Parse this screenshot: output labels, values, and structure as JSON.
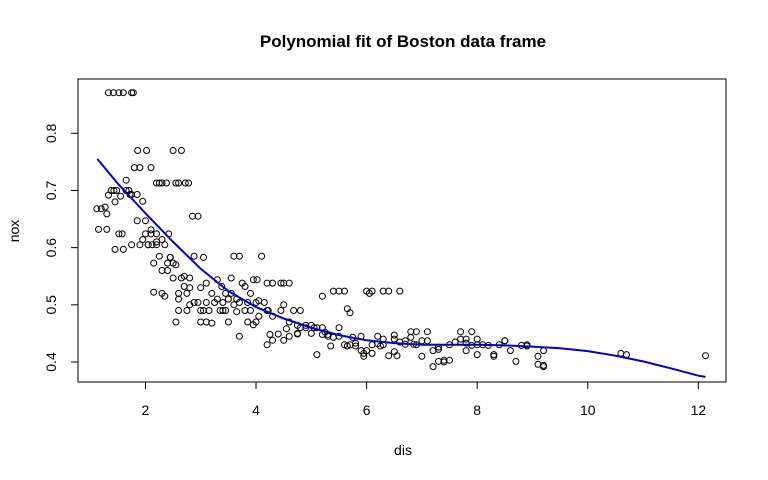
{
  "chart_data": {
    "type": "scatter",
    "title": "Polynomial fit of Boston data frame",
    "xlabel": "dis",
    "ylabel": "nox",
    "xlim": [
      0.78,
      12.5
    ],
    "ylim": [
      0.365,
      0.895
    ],
    "x_ticks": [
      2,
      4,
      6,
      8,
      10,
      12
    ],
    "y_ticks": [
      0.4,
      0.5,
      0.6,
      0.7,
      0.8
    ],
    "grid": false,
    "legend": "none",
    "colors": {
      "points": "#000000",
      "fit": "#0000cc"
    },
    "points": {
      "x": [
        1.33,
        1.42,
        1.52,
        1.6,
        1.75,
        1.78,
        1.12,
        1.2,
        1.27,
        1.33,
        1.38,
        1.43,
        1.48,
        1.52,
        1.58,
        1.65,
        1.7,
        1.75,
        1.8,
        1.86,
        1.9,
        1.95,
        2.02,
        2.1,
        2.12,
        2.15,
        2.2,
        2.25,
        2.3,
        2.38,
        2.42,
        2.5,
        2.55,
        2.6,
        2.65,
        2.72,
        2.78,
        2.85,
        2.88,
        2.95,
        3.05,
        3.1,
        3.2,
        3.3,
        3.38,
        3.45,
        3.5,
        3.55,
        3.6,
        3.7,
        3.75,
        3.8,
        3.9,
        3.95,
        4.02,
        4.05,
        4.1,
        4.2,
        4.22,
        4.3,
        4.4,
        4.45,
        4.5,
        4.6,
        4.68,
        4.75,
        4.8,
        4.9,
        5.0,
        5.1,
        5.2,
        5.25,
        5.3,
        5.4,
        5.5,
        5.6,
        5.65,
        5.7,
        5.8,
        5.9,
        6.0,
        6.05,
        6.1,
        6.2,
        6.3,
        6.4,
        6.5,
        6.6,
        6.7,
        6.8,
        6.9,
        7.0,
        7.1,
        7.2,
        7.3,
        7.4,
        7.5,
        7.7,
        7.8,
        7.9,
        8.0,
        8.3,
        8.5,
        8.7,
        8.9,
        9.1,
        9.2,
        10.6,
        10.7,
        12.13,
        1.15,
        1.3,
        1.45,
        1.6,
        1.75,
        1.9,
        2.05,
        2.2,
        2.35,
        2.5,
        2.65,
        2.8,
        2.95,
        3.1,
        3.25,
        3.4,
        3.55,
        3.7,
        3.85,
        4.0,
        4.15,
        4.3,
        4.45,
        4.6,
        4.75,
        4.9,
        5.05,
        5.2,
        5.35,
        5.5,
        5.65,
        5.8,
        5.95,
        6.1,
        6.25,
        6.4,
        6.55,
        6.7,
        6.85,
        7.0,
        7.3,
        7.6,
        7.9,
        8.2,
        8.5,
        8.8,
        9.1,
        1.3,
        1.45,
        1.55,
        1.65,
        1.72,
        1.85,
        2.0,
        2.1,
        2.3,
        2.4,
        2.6,
        2.75,
        3.0,
        3.15,
        3.35,
        3.5,
        3.65,
        3.8,
        4.0,
        4.2,
        4.5,
        5.2,
        5.5,
        5.75,
        5.95,
        6.1,
        6.3,
        6.5,
        7.3,
        7.8,
        8.0,
        9.2,
        1.85,
        2.0,
        2.1,
        2.2,
        2.3,
        2.45,
        2.55,
        2.7,
        2.8,
        1.95,
        2.05,
        2.25,
        2.4,
        2.5,
        2.6,
        2.75,
        2.88,
        3.05,
        2.15,
        2.35,
        2.6,
        3.0,
        3.2,
        3.45,
        3.65,
        3.85,
        4.05,
        4.25,
        4.55,
        4.75,
        2.3,
        2.55,
        2.8,
        3.1,
        3.4,
        3.7,
        3.95,
        4.3,
        4.6,
        5.0,
        5.3,
        5.6,
        5.9,
        6.2,
        6.5,
        6.8,
        7.1,
        7.4,
        7.7,
        8.0,
        8.3,
        8.6,
        8.9,
        9.2,
        2.2,
        2.45,
        2.7,
        3.0,
        3.3,
        3.6,
        3.9,
        4.2,
        4.5,
        4.8,
        5.1,
        5.4,
        5.7,
        6.0,
        6.3,
        6.6,
        6.9,
        7.2,
        7.5,
        7.8,
        8.1,
        8.4
      ],
      "y": [
        0.871,
        0.871,
        0.871,
        0.871,
        0.871,
        0.871,
        0.668,
        0.668,
        0.671,
        0.692,
        0.7,
        0.7,
        0.7,
        0.624,
        0.624,
        0.718,
        0.7,
        0.693,
        0.74,
        0.77,
        0.74,
        0.681,
        0.77,
        0.74,
        0.605,
        0.573,
        0.713,
        0.713,
        0.713,
        0.713,
        0.624,
        0.77,
        0.713,
        0.713,
        0.77,
        0.713,
        0.713,
        0.655,
        0.585,
        0.655,
        0.583,
        0.538,
        0.52,
        0.544,
        0.532,
        0.52,
        0.51,
        0.52,
        0.585,
        0.585,
        0.538,
        0.532,
        0.52,
        0.544,
        0.544,
        0.507,
        0.585,
        0.538,
        0.49,
        0.538,
        0.449,
        0.538,
        0.538,
        0.538,
        0.49,
        0.449,
        0.49,
        0.46,
        0.464,
        0.413,
        0.515,
        0.452,
        0.445,
        0.524,
        0.524,
        0.524,
        0.493,
        0.486,
        0.433,
        0.445,
        0.524,
        0.52,
        0.524,
        0.445,
        0.524,
        0.524,
        0.447,
        0.524,
        0.437,
        0.453,
        0.453,
        0.437,
        0.453,
        0.392,
        0.401,
        0.403,
        0.403,
        0.453,
        0.44,
        0.453,
        0.44,
        0.413,
        0.437,
        0.401,
        0.428,
        0.41,
        0.392,
        0.415,
        0.413,
        0.411,
        0.632,
        0.632,
        0.597,
        0.597,
        0.605,
        0.605,
        0.605,
        0.605,
        0.605,
        0.547,
        0.547,
        0.547,
        0.504,
        0.504,
        0.504,
        0.504,
        0.547,
        0.504,
        0.504,
        0.504,
        0.504,
        0.48,
        0.49,
        0.47,
        0.464,
        0.464,
        0.46,
        0.46,
        0.428,
        0.46,
        0.428,
        0.428,
        0.415,
        0.415,
        0.428,
        0.411,
        0.411,
        0.431,
        0.431,
        0.41,
        0.426,
        0.435,
        0.429,
        0.429,
        0.437,
        0.429,
        0.396,
        0.659,
        0.68,
        0.69,
        0.7,
        0.693,
        0.693,
        0.624,
        0.624,
        0.56,
        0.56,
        0.51,
        0.49,
        0.49,
        0.49,
        0.49,
        0.47,
        0.51,
        0.49,
        0.47,
        0.43,
        0.438,
        0.448,
        0.445,
        0.443,
        0.41,
        0.43,
        0.44,
        0.418,
        0.422,
        0.433,
        0.413,
        0.42,
        0.647,
        0.647,
        0.631,
        0.624,
        0.614,
        0.583,
        0.57,
        0.532,
        0.53,
        0.614,
        0.605,
        0.585,
        0.573,
        0.573,
        0.52,
        0.52,
        0.504,
        0.49,
        0.522,
        0.515,
        0.49,
        0.47,
        0.468,
        0.49,
        0.488,
        0.47,
        0.48,
        0.448,
        0.458,
        0.45,
        0.52,
        0.47,
        0.5,
        0.47,
        0.49,
        0.445,
        0.465,
        0.438,
        0.445,
        0.45,
        0.448,
        0.43,
        0.42,
        0.432,
        0.44,
        0.443,
        0.437,
        0.4,
        0.44,
        0.43,
        0.41,
        0.42,
        0.43,
        0.394,
        0.61,
        0.583,
        0.55,
        0.53,
        0.51,
        0.5,
        0.49,
        0.49,
        0.5,
        0.46,
        0.46,
        0.443,
        0.43,
        0.42,
        0.43,
        0.435,
        0.43,
        0.42,
        0.43,
        0.42,
        0.43,
        0.43
      ]
    },
    "fit": {
      "x": [
        1.13,
        1.5,
        2.0,
        2.5,
        3.0,
        3.5,
        4.0,
        4.5,
        5.0,
        5.5,
        6.0,
        6.5,
        7.0,
        7.5,
        8.0,
        8.5,
        9.0,
        9.5,
        10.0,
        10.5,
        11.0,
        11.5,
        12.0,
        12.13
      ],
      "y": [
        0.755,
        0.712,
        0.66,
        0.61,
        0.563,
        0.524,
        0.496,
        0.476,
        0.46,
        0.447,
        0.438,
        0.433,
        0.43,
        0.43,
        0.43,
        0.429,
        0.427,
        0.424,
        0.419,
        0.411,
        0.401,
        0.389,
        0.376,
        0.374
      ]
    }
  }
}
